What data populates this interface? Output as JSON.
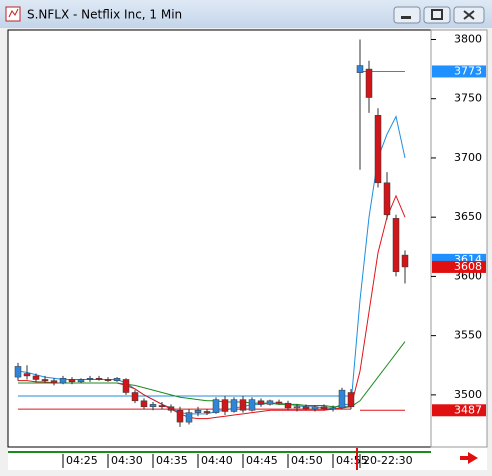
{
  "window_title": "S.NFLX - Netflix Inc, 1 Min",
  "chart_data": {
    "type": "candlestick",
    "up_color": "#2f86d8",
    "down_color": "#d0161b",
    "categories": [
      null,
      null,
      null,
      null,
      null,
      "04:25",
      null,
      null,
      null,
      null,
      "04:30",
      null,
      null,
      null,
      null,
      "04:35",
      null,
      null,
      null,
      null,
      "04:40",
      null,
      null,
      null,
      null,
      "04:45",
      null,
      null,
      null,
      null,
      "04:50",
      null,
      null,
      null,
      null,
      "04:55",
      null,
      null,
      "20-22:30",
      null,
      null,
      null,
      null,
      null
    ],
    "open": [
      3515,
      3518,
      3516,
      3513,
      3512,
      3510,
      3513,
      3511,
      3513,
      3514,
      3513,
      3512,
      3513,
      3502,
      3495,
      3490,
      3491,
      3490,
      3487,
      3477,
      3485,
      3486,
      3485,
      3496,
      3486,
      3496,
      3487,
      3495,
      3492,
      3494,
      3493,
      3489,
      3490,
      3488,
      3490,
      3488,
      3489,
      3502,
      3772,
      3775,
      3736,
      3679,
      3649,
      3618
    ],
    "high": [
      3527,
      3525,
      3518,
      3516,
      3514,
      3516,
      3515,
      3514,
      3516,
      3516,
      3515,
      3515,
      3514,
      3504,
      3497,
      3494,
      3494,
      3492,
      3490,
      3488,
      3490,
      3488,
      3498,
      3499,
      3498,
      3499,
      3498,
      3497,
      3496,
      3496,
      3495,
      3492,
      3492,
      3491,
      3492,
      3491,
      3506,
      3505,
      3800,
      3782,
      3742,
      3688,
      3652,
      3622
    ],
    "low": [
      3512,
      3513,
      3511,
      3510,
      3508,
      3509,
      3509,
      3510,
      3511,
      3512,
      3511,
      3511,
      3500,
      3493,
      3488,
      3487,
      3488,
      3485,
      3473,
      3475,
      3482,
      3483,
      3484,
      3483,
      3485,
      3485,
      3486,
      3490,
      3491,
      3492,
      3487,
      3486,
      3487,
      3486,
      3487,
      3486,
      3488,
      3488,
      3690,
      3738,
      3675,
      3648,
      3600,
      3594
    ],
    "close": [
      3524,
      3516,
      3513,
      3512,
      3510,
      3514,
      3511,
      3513,
      3514,
      3513,
      3512,
      3514,
      3502,
      3495,
      3490,
      3492,
      3490,
      3487,
      3477,
      3485,
      3487,
      3485,
      3496,
      3486,
      3496,
      3487,
      3496,
      3492,
      3495,
      3493,
      3489,
      3490,
      3488,
      3490,
      3488,
      3489,
      3504,
      3490,
      3778,
      3751,
      3679,
      3652,
      3604,
      3608
    ],
    "overlays": [
      {
        "color": "#1f8ee0",
        "values": [
          3520,
          3519,
          3517,
          3515,
          3514,
          3513,
          3513,
          3513,
          3513,
          3513,
          3513,
          3513,
          3510,
          3505,
          3500,
          3496,
          3492,
          3489,
          3485,
          3484,
          3484,
          3484,
          3486,
          3487,
          3489,
          3490,
          3492,
          3492,
          3493,
          3493,
          3492,
          3491,
          3490,
          3490,
          3489,
          3489,
          3492,
          3492,
          3580,
          3650,
          3700,
          3720,
          3735,
          3700
        ]
      },
      {
        "color": "#e0141b",
        "values": [
          3512,
          3512,
          3511,
          3511,
          3510,
          3510,
          3510,
          3510,
          3510,
          3510,
          3510,
          3510,
          3508,
          3505,
          3500,
          3496,
          3492,
          3488,
          3484,
          3481,
          3480,
          3480,
          3481,
          3482,
          3483,
          3484,
          3485,
          3486,
          3487,
          3487,
          3487,
          3487,
          3487,
          3487,
          3487,
          3488,
          3489,
          3490,
          3520,
          3570,
          3620,
          3650,
          3668,
          3650
        ]
      },
      {
        "color": "#1c8a1c",
        "values": [
          3510,
          3510,
          3510,
          3510,
          3510,
          3510,
          3510,
          3510,
          3510,
          3510,
          3510,
          3510,
          3509,
          3508,
          3506,
          3504,
          3502,
          3500,
          3498,
          3497,
          3496,
          3495,
          3495,
          3494,
          3494,
          3494,
          3493,
          3493,
          3493,
          3492,
          3492,
          3492,
          3491,
          3491,
          3491,
          3490,
          3490,
          3490,
          3495,
          3505,
          3515,
          3525,
          3535,
          3545
        ]
      }
    ],
    "levels": [
      {
        "value": 3499,
        "color": "#1f8ee0",
        "from": 0,
        "to": 37
      },
      {
        "value": 3488,
        "color": "#e0141b",
        "from": 0,
        "to": 37
      },
      {
        "value": 3773,
        "color": "#1f8ee0",
        "from": 38,
        "to": 43
      },
      {
        "value": 3487,
        "color": "#e0141b",
        "from": 38,
        "to": 43
      }
    ],
    "price_labels": [
      {
        "value": 3773,
        "color": "#1e90ff"
      },
      {
        "value": 3614,
        "color": "#1e90ff"
      },
      {
        "value": 3608,
        "color": "#e01010"
      },
      {
        "value": 3487,
        "color": "#e01010"
      }
    ],
    "ylim": [
      3456,
      3808
    ],
    "yticks": [
      3500,
      3550,
      3600,
      3650,
      3700,
      3750,
      3800
    ]
  }
}
